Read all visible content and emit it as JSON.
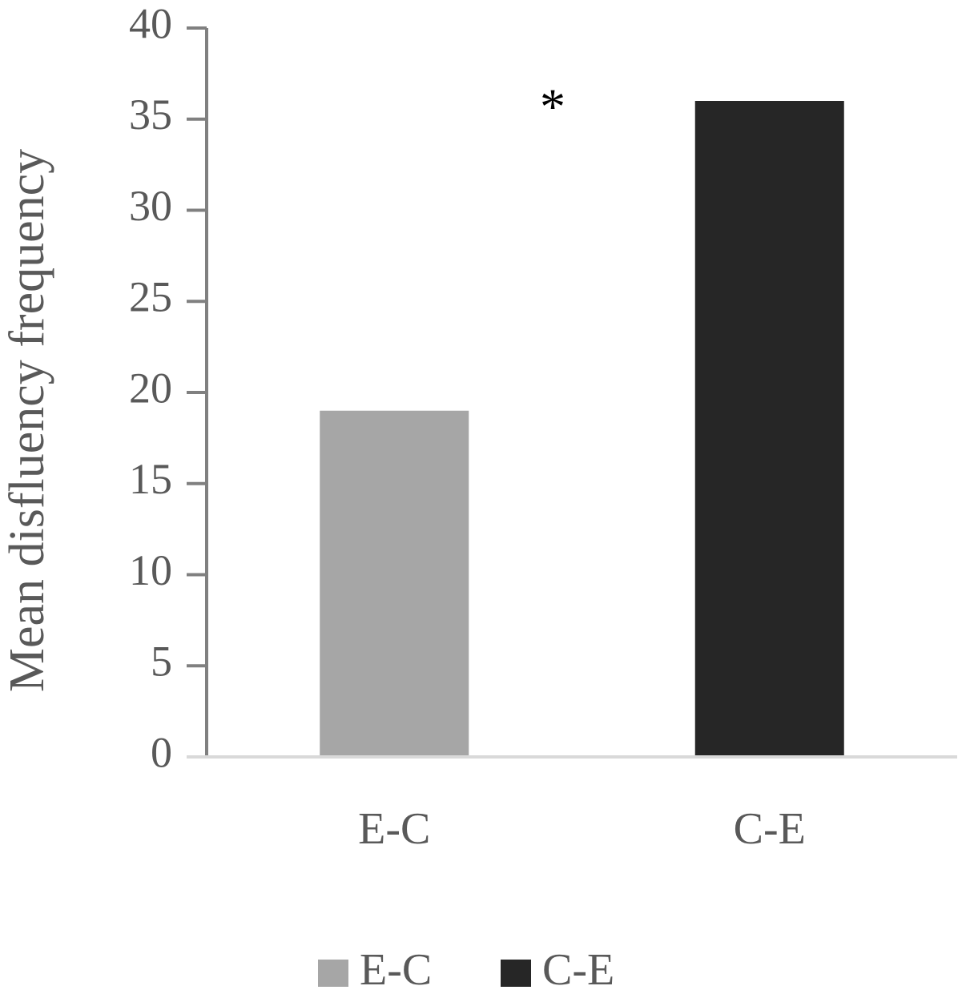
{
  "chart_data": {
    "type": "bar",
    "y_label": "Mean disfluency frequency",
    "categories": [
      "E-C",
      "C-E"
    ],
    "series": [
      {
        "name": "E-C",
        "color": "#a6a6a6",
        "values": [
          19,
          null
        ]
      },
      {
        "name": "C-E",
        "color": "#262626",
        "values": [
          null,
          36
        ]
      }
    ],
    "annotation": "*",
    "ylim": [
      0,
      40
    ],
    "yticks": [
      0,
      5,
      10,
      15,
      20,
      25,
      30,
      35,
      40
    ],
    "grid": false,
    "legend": "bottom"
  }
}
